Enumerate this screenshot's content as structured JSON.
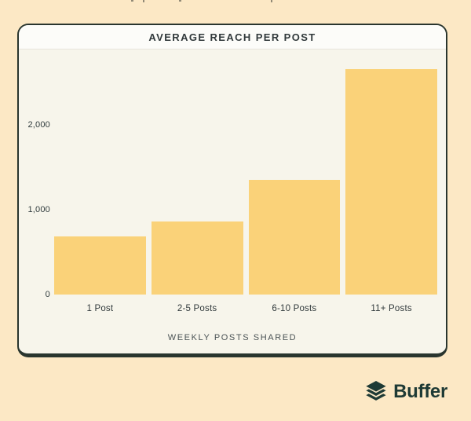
{
  "page": {
    "background": "#FCE8C5"
  },
  "card": {
    "title": "AVERAGE REACH PER POST"
  },
  "chart_data": {
    "type": "bar",
    "title": "AVERAGE REACH PER POST",
    "categories": [
      "1 Post",
      "2-5 Posts",
      "6-10 Posts",
      "11+ Posts"
    ],
    "values": [
      690,
      860,
      1350,
      2660
    ],
    "xlabel": "WEEKLY POSTS SHARED",
    "ylabel": "",
    "ylim": [
      0,
      2800
    ],
    "yticks": [
      {
        "value": 0,
        "label": "0"
      },
      {
        "value": 1000,
        "label": "1,000"
      },
      {
        "value": 2000,
        "label": "2,000"
      }
    ],
    "grid": false,
    "legend": null,
    "bar_color": "#FAD279",
    "plot_bg": "#F7F5EB"
  },
  "footer": {
    "brand": "Buffer",
    "logo_color": "#1E3A35"
  }
}
